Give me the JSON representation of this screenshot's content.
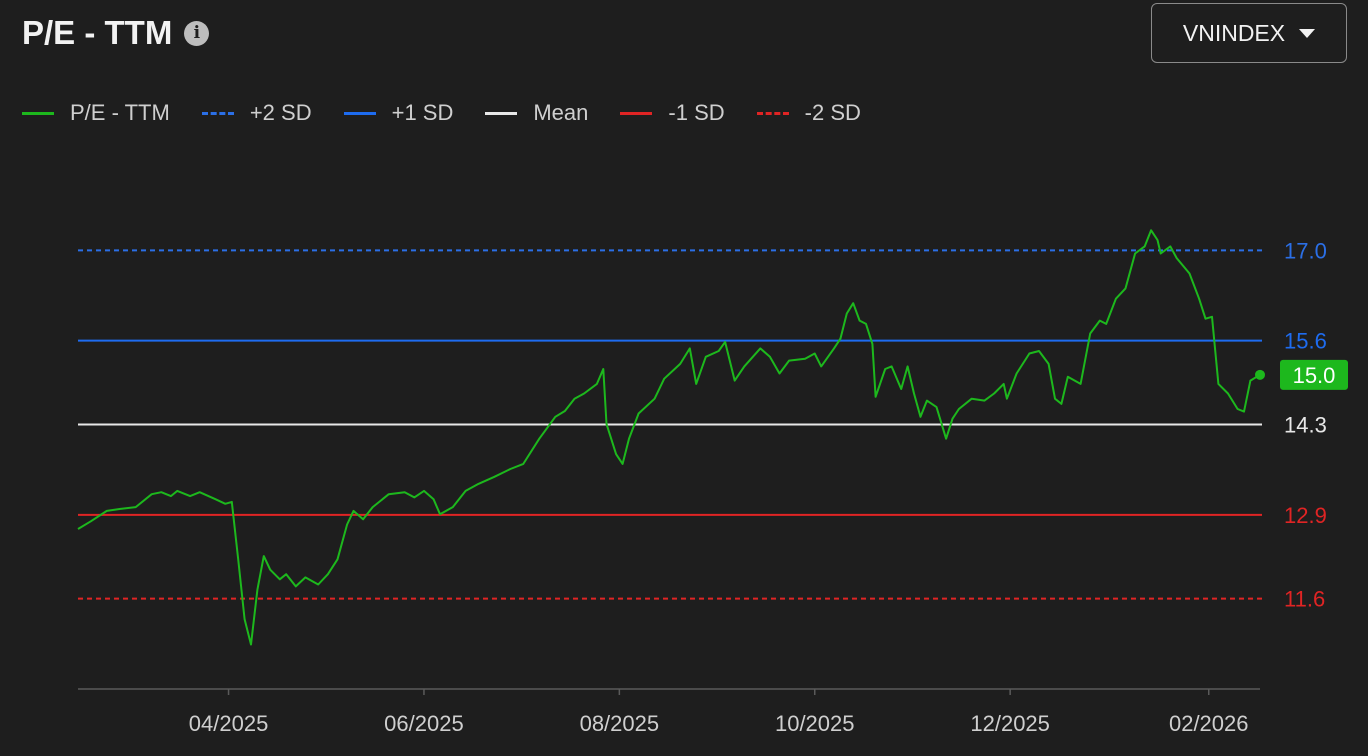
{
  "header": {
    "title": "P/E - TTM",
    "info_icon": "info-icon",
    "dropdown_value": "VNINDEX"
  },
  "colors": {
    "pe": "#1db81d",
    "plus2": "#2b6fe6",
    "plus1": "#1e6cf0",
    "mean": "#e8e8e8",
    "minus1": "#e02424",
    "minus2": "#e02424"
  },
  "legend": [
    {
      "label": "P/E - TTM",
      "style": "solid",
      "color": "#1db81d"
    },
    {
      "label": "+2 SD",
      "style": "dashed",
      "color": "#2b6fe6"
    },
    {
      "label": "+1 SD",
      "style": "solid",
      "color": "#1e6cf0"
    },
    {
      "label": "Mean",
      "style": "solid",
      "color": "#e8e8e8"
    },
    {
      "label": "-1 SD",
      "style": "solid",
      "color": "#e02424"
    },
    {
      "label": "-2 SD",
      "style": "dashed",
      "color": "#e02424"
    }
  ],
  "chart_data": {
    "type": "line",
    "title": "P/E - TTM",
    "xlabel": "",
    "ylabel": "",
    "xlim": [
      "2025-02-13",
      "2026-02-17"
    ],
    "ylim": [
      10.2,
      18.4
    ],
    "grid": false,
    "legend_position": "top-left",
    "x_ticks": [
      {
        "date": "2025-04-01",
        "label": "04/2025"
      },
      {
        "date": "2025-06-01",
        "label": "06/2025"
      },
      {
        "date": "2025-08-01",
        "label": "08/2025"
      },
      {
        "date": "2025-10-01",
        "label": "10/2025"
      },
      {
        "date": "2025-12-01",
        "label": "12/2025"
      },
      {
        "date": "2026-02-01",
        "label": "02/2026"
      }
    ],
    "reference_lines": [
      {
        "name": "+2 SD",
        "value": 17.0,
        "label": "17.0",
        "style": "dashed",
        "color": "#2b6fe6"
      },
      {
        "name": "+1 SD",
        "value": 15.6,
        "label": "15.6",
        "style": "solid",
        "color": "#1e6cf0"
      },
      {
        "name": "Mean",
        "value": 14.3,
        "label": "14.3",
        "style": "solid",
        "color": "#e8e8e8"
      },
      {
        "name": "-1 SD",
        "value": 12.9,
        "label": "12.9",
        "style": "solid",
        "color": "#e02424"
      },
      {
        "name": "-2 SD",
        "value": 11.6,
        "label": "11.6",
        "style": "dashed",
        "color": "#e02424"
      }
    ],
    "last_value_label": "15.0",
    "series": [
      {
        "name": "P/E - TTM",
        "color": "#1db81d",
        "points": [
          [
            "2025-02-13",
            12.68
          ],
          [
            "2025-02-17",
            12.8
          ],
          [
            "2025-02-22",
            12.96
          ],
          [
            "2025-02-26",
            12.99
          ],
          [
            "2025-03-03",
            13.02
          ],
          [
            "2025-03-08",
            13.22
          ],
          [
            "2025-03-11",
            13.25
          ],
          [
            "2025-03-14",
            13.19
          ],
          [
            "2025-03-16",
            13.27
          ],
          [
            "2025-03-20",
            13.19
          ],
          [
            "2025-03-23",
            13.25
          ],
          [
            "2025-03-28",
            13.14
          ],
          [
            "2025-03-31",
            13.07
          ],
          [
            "2025-04-02",
            13.1
          ],
          [
            "2025-04-04",
            12.21
          ],
          [
            "2025-04-06",
            11.28
          ],
          [
            "2025-04-08",
            10.89
          ],
          [
            "2025-04-10",
            11.74
          ],
          [
            "2025-04-12",
            12.26
          ],
          [
            "2025-04-14",
            12.05
          ],
          [
            "2025-04-17",
            11.9
          ],
          [
            "2025-04-19",
            11.98
          ],
          [
            "2025-04-22",
            11.79
          ],
          [
            "2025-04-25",
            11.93
          ],
          [
            "2025-04-29",
            11.82
          ],
          [
            "2025-05-02",
            11.98
          ],
          [
            "2025-05-05",
            12.21
          ],
          [
            "2025-05-08",
            12.75
          ],
          [
            "2025-05-10",
            12.96
          ],
          [
            "2025-05-13",
            12.83
          ],
          [
            "2025-05-16",
            13.02
          ],
          [
            "2025-05-21",
            13.22
          ],
          [
            "2025-05-26",
            13.25
          ],
          [
            "2025-05-29",
            13.17
          ],
          [
            "2025-06-01",
            13.27
          ],
          [
            "2025-06-04",
            13.14
          ],
          [
            "2025-06-06",
            12.91
          ],
          [
            "2025-06-10",
            13.02
          ],
          [
            "2025-06-14",
            13.27
          ],
          [
            "2025-06-18",
            13.38
          ],
          [
            "2025-06-23",
            13.49
          ],
          [
            "2025-06-28",
            13.61
          ],
          [
            "2025-07-02",
            13.69
          ],
          [
            "2025-07-07",
            14.08
          ],
          [
            "2025-07-12",
            14.42
          ],
          [
            "2025-07-15",
            14.51
          ],
          [
            "2025-07-18",
            14.7
          ],
          [
            "2025-07-21",
            14.78
          ],
          [
            "2025-07-25",
            14.93
          ],
          [
            "2025-07-27",
            15.16
          ],
          [
            "2025-07-28",
            14.31
          ],
          [
            "2025-07-31",
            13.84
          ],
          [
            "2025-08-02",
            13.69
          ],
          [
            "2025-08-04",
            14.08
          ],
          [
            "2025-08-07",
            14.47
          ],
          [
            "2025-08-12",
            14.7
          ],
          [
            "2025-08-15",
            15.01
          ],
          [
            "2025-08-20",
            15.24
          ],
          [
            "2025-08-23",
            15.48
          ],
          [
            "2025-08-25",
            14.93
          ],
          [
            "2025-08-28",
            15.35
          ],
          [
            "2025-09-01",
            15.44
          ],
          [
            "2025-09-03",
            15.58
          ],
          [
            "2025-09-06",
            14.98
          ],
          [
            "2025-09-09",
            15.2
          ],
          [
            "2025-09-14",
            15.48
          ],
          [
            "2025-09-17",
            15.35
          ],
          [
            "2025-09-20",
            15.09
          ],
          [
            "2025-09-23",
            15.29
          ],
          [
            "2025-09-28",
            15.32
          ],
          [
            "2025-10-01",
            15.4
          ],
          [
            "2025-10-03",
            15.2
          ],
          [
            "2025-10-07",
            15.48
          ],
          [
            "2025-10-09",
            15.63
          ],
          [
            "2025-10-11",
            16.02
          ],
          [
            "2025-10-13",
            16.18
          ],
          [
            "2025-10-15",
            15.91
          ],
          [
            "2025-10-17",
            15.86
          ],
          [
            "2025-10-19",
            15.55
          ],
          [
            "2025-10-20",
            14.73
          ],
          [
            "2025-10-23",
            15.16
          ],
          [
            "2025-10-25",
            15.2
          ],
          [
            "2025-10-28",
            14.85
          ],
          [
            "2025-10-30",
            15.2
          ],
          [
            "2025-11-01",
            14.78
          ],
          [
            "2025-11-03",
            14.42
          ],
          [
            "2025-11-05",
            14.67
          ],
          [
            "2025-11-08",
            14.57
          ],
          [
            "2025-11-11",
            14.08
          ],
          [
            "2025-11-13",
            14.39
          ],
          [
            "2025-11-15",
            14.54
          ],
          [
            "2025-11-19",
            14.7
          ],
          [
            "2025-11-23",
            14.67
          ],
          [
            "2025-11-26",
            14.78
          ],
          [
            "2025-11-29",
            14.93
          ],
          [
            "2025-11-30",
            14.7
          ],
          [
            "2025-12-03",
            15.09
          ],
          [
            "2025-12-07",
            15.4
          ],
          [
            "2025-12-10",
            15.44
          ],
          [
            "2025-12-13",
            15.24
          ],
          [
            "2025-12-15",
            14.7
          ],
          [
            "2025-12-17",
            14.62
          ],
          [
            "2025-12-19",
            15.04
          ],
          [
            "2025-12-23",
            14.93
          ],
          [
            "2025-12-26",
            15.71
          ],
          [
            "2025-12-29",
            15.91
          ],
          [
            "2025-12-31",
            15.86
          ],
          [
            "2026-01-03",
            16.25
          ],
          [
            "2026-01-06",
            16.41
          ],
          [
            "2026-01-09",
            16.95
          ],
          [
            "2026-01-12",
            17.06
          ],
          [
            "2026-01-14",
            17.31
          ],
          [
            "2026-01-16",
            17.16
          ],
          [
            "2026-01-17",
            16.95
          ],
          [
            "2026-01-20",
            17.06
          ],
          [
            "2026-01-22",
            16.88
          ],
          [
            "2026-01-26",
            16.64
          ],
          [
            "2026-01-29",
            16.25
          ],
          [
            "2026-01-31",
            15.94
          ],
          [
            "2026-02-02",
            15.97
          ],
          [
            "2026-02-04",
            14.93
          ],
          [
            "2026-02-07",
            14.78
          ],
          [
            "2026-02-10",
            14.54
          ],
          [
            "2026-02-12",
            14.5
          ],
          [
            "2026-02-14",
            14.98
          ],
          [
            "2026-02-17",
            15.07
          ]
        ]
      }
    ]
  }
}
